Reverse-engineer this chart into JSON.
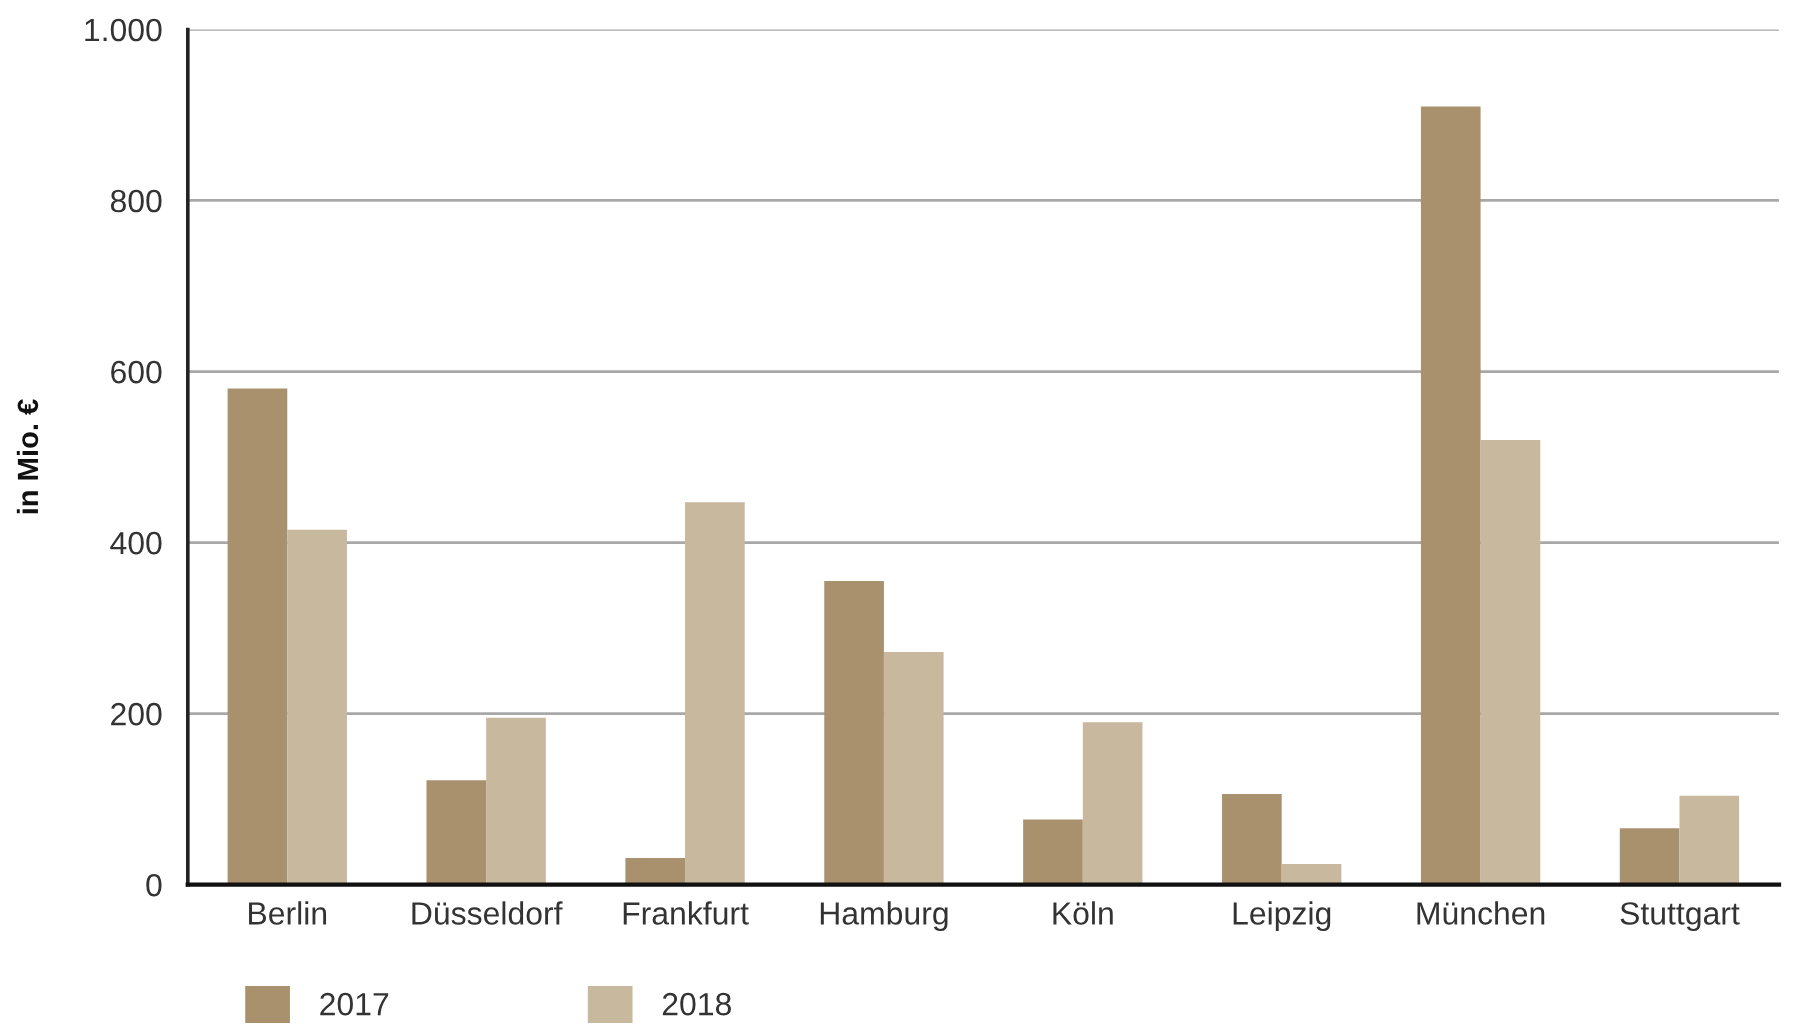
{
  "chart_data": {
    "type": "bar",
    "ylabel": "in Mio. €",
    "categories": [
      "Berlin",
      "Düsseldorf",
      "Frankfurt",
      "Hamburg",
      "Köln",
      "Leipzig",
      "München",
      "Stuttgart"
    ],
    "series": [
      {
        "name": "2017",
        "color": "#aa916e",
        "values": [
          580,
          122,
          31,
          355,
          76,
          106,
          910,
          66
        ]
      },
      {
        "name": "2018",
        "color": "#c8b89e",
        "values": [
          415,
          195,
          447,
          272,
          190,
          24,
          520,
          104
        ]
      }
    ],
    "ylim": [
      0,
      1000
    ],
    "yticks": [
      0,
      200,
      400,
      600,
      800,
      {
        "value": 1000,
        "label": "1.000"
      }
    ],
    "grid": "y",
    "legend": "bottom left"
  }
}
